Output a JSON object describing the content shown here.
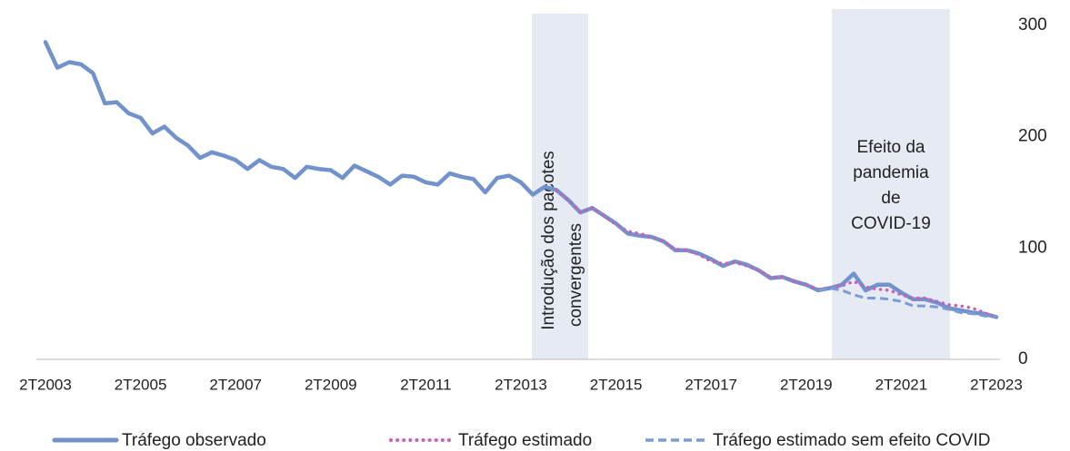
{
  "chart_data": {
    "type": "line",
    "categories": [
      "2T2003",
      null,
      null,
      null,
      null,
      null,
      null,
      null,
      "2T2005",
      null,
      null,
      null,
      null,
      null,
      null,
      null,
      "2T2007",
      null,
      null,
      null,
      null,
      null,
      null,
      null,
      "2T2009",
      null,
      null,
      null,
      null,
      null,
      null,
      null,
      "2T2011",
      null,
      null,
      null,
      null,
      null,
      null,
      null,
      "2T2013",
      null,
      null,
      null,
      null,
      null,
      null,
      null,
      "2T2015",
      null,
      null,
      null,
      null,
      null,
      null,
      null,
      "2T2017",
      null,
      null,
      null,
      null,
      null,
      null,
      null,
      "2T2019",
      null,
      null,
      null,
      null,
      null,
      null,
      null,
      "2T2021",
      null,
      null,
      null,
      null,
      null,
      null,
      null,
      "2T2023"
    ],
    "series": [
      {
        "name": "Tráfego observado",
        "color": "#7192cb",
        "style": "solid",
        "values": [
          285,
          262,
          267,
          265,
          257,
          230,
          231,
          221,
          217,
          203,
          209,
          199,
          192,
          181,
          186,
          183,
          179,
          171,
          179,
          173,
          171,
          163,
          173,
          171,
          170,
          163,
          174,
          169,
          164,
          157,
          165,
          164,
          159,
          157,
          167,
          164,
          162,
          150,
          163,
          165,
          159,
          148,
          155,
          152,
          143,
          132,
          136,
          129,
          122,
          113,
          111,
          110,
          106,
          98,
          98,
          95,
          90,
          84,
          88,
          85,
          80,
          73,
          74,
          70,
          67,
          62,
          64,
          67,
          77,
          62,
          67,
          67,
          60,
          54,
          54,
          51,
          46,
          44,
          42,
          41,
          38
        ]
      },
      {
        "name": "Tráfego estimado",
        "color": "#c762b8",
        "style": "dotted",
        "values": [
          null,
          null,
          null,
          null,
          null,
          null,
          null,
          null,
          null,
          null,
          null,
          null,
          null,
          null,
          null,
          null,
          null,
          null,
          null,
          null,
          null,
          null,
          null,
          null,
          null,
          null,
          null,
          null,
          null,
          null,
          null,
          null,
          null,
          null,
          null,
          null,
          null,
          null,
          null,
          null,
          null,
          null,
          null,
          152,
          143,
          132,
          136,
          129,
          121,
          115,
          113,
          110,
          106,
          99,
          98,
          94,
          88,
          86,
          87,
          84,
          80,
          74,
          74,
          70,
          67,
          63,
          64,
          66,
          70,
          65,
          63,
          62,
          58,
          55,
          55,
          52,
          49,
          48,
          46,
          42,
          37
        ]
      },
      {
        "name": "Tráfego estimado sem efeito COVID",
        "color": "#7b9bd6",
        "style": "dashed",
        "values": [
          null,
          null,
          null,
          null,
          null,
          null,
          null,
          null,
          null,
          null,
          null,
          null,
          null,
          null,
          null,
          null,
          null,
          null,
          null,
          null,
          null,
          null,
          null,
          null,
          null,
          null,
          null,
          null,
          null,
          null,
          null,
          null,
          null,
          null,
          null,
          null,
          null,
          null,
          null,
          null,
          null,
          null,
          null,
          null,
          null,
          null,
          null,
          null,
          null,
          null,
          null,
          null,
          null,
          null,
          null,
          null,
          null,
          null,
          null,
          null,
          null,
          null,
          null,
          null,
          null,
          62,
          64,
          62,
          58,
          55,
          55,
          54,
          52,
          48,
          48,
          47,
          45,
          42,
          41,
          39,
          38
        ]
      }
    ],
    "ylim": [
      0,
      300
    ],
    "yticks": [
      0,
      100,
      200,
      300
    ],
    "annotations": [
      [
        "Introdução dos pacotes",
        "convergentes"
      ],
      [
        "Efeito da",
        "pandemia",
        "de",
        "COVID-19"
      ]
    ],
    "legend": "bottom"
  }
}
